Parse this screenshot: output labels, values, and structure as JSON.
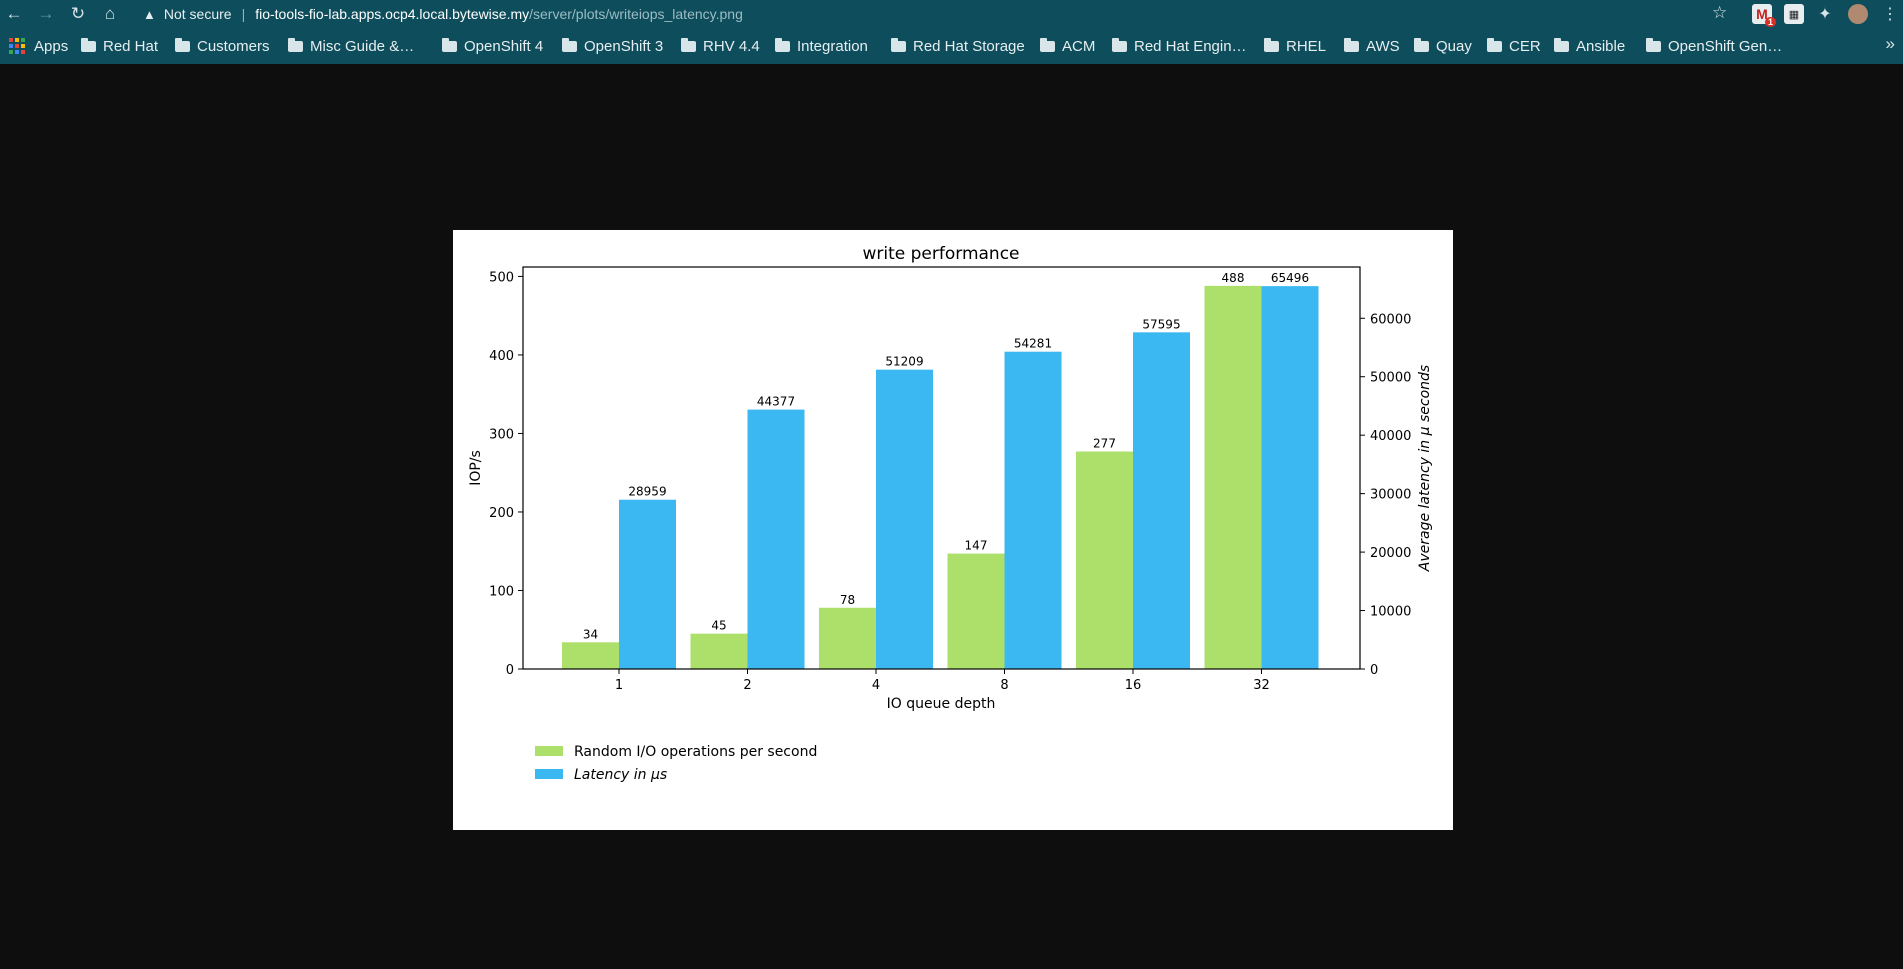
{
  "browser": {
    "security_label": "Not secure",
    "url_host": "fio-tools-fio-lab.apps.ocp4.local.bytewise.my",
    "url_path": "/server/plots/writeiops_latency.png",
    "gmail_badge": "1",
    "bookmarks": [
      {
        "label": "Apps",
        "icon": "apps-grid-icon"
      },
      {
        "label": "Red Hat",
        "icon": "folder-icon"
      },
      {
        "label": "Customers",
        "icon": "folder-icon"
      },
      {
        "label": "Misc Guide &…",
        "icon": "folder-icon"
      },
      {
        "label": "OpenShift 4",
        "icon": "folder-icon"
      },
      {
        "label": "OpenShift 3",
        "icon": "folder-icon"
      },
      {
        "label": "RHV 4.4",
        "icon": "folder-icon"
      },
      {
        "label": "Integration",
        "icon": "folder-icon"
      },
      {
        "label": "Red Hat Storage",
        "icon": "folder-icon"
      },
      {
        "label": "ACM",
        "icon": "folder-icon"
      },
      {
        "label": "Red Hat Engin…",
        "icon": "folder-icon"
      },
      {
        "label": "RHEL",
        "icon": "folder-icon"
      },
      {
        "label": "AWS",
        "icon": "folder-icon"
      },
      {
        "label": "Quay",
        "icon": "folder-icon"
      },
      {
        "label": "CER",
        "icon": "folder-icon"
      },
      {
        "label": "Ansible",
        "icon": "folder-icon"
      },
      {
        "label": "OpenShift Gen…",
        "icon": "folder-icon"
      }
    ],
    "toolbar_color": "#0e4d5c"
  },
  "chart_data": {
    "type": "bar",
    "title": "write performance",
    "xlabel": "IO queue depth",
    "ylabel_left": "IOP/s",
    "ylabel_right": "Average latency in μ seconds",
    "categories": [
      "1",
      "2",
      "4",
      "8",
      "16",
      "32"
    ],
    "series": [
      {
        "name": "Random I/O operations per second",
        "axis": "left",
        "color": "#addf6b",
        "values": [
          34,
          45,
          78,
          147,
          277,
          488
        ]
      },
      {
        "name": "Latency in μs",
        "axis": "right",
        "color": "#3bb7f1",
        "values": [
          28959,
          44377,
          51209,
          54281,
          57595,
          65496
        ]
      }
    ],
    "ylim_left": [
      0,
      512
    ],
    "ylim_right": [
      0,
      68771
    ],
    "yticks_left": [
      0,
      100,
      200,
      300,
      400,
      500
    ],
    "yticks_right": [
      0,
      10000,
      20000,
      30000,
      40000,
      50000,
      60000
    ],
    "legend_position": "below-left",
    "grid": false
  }
}
